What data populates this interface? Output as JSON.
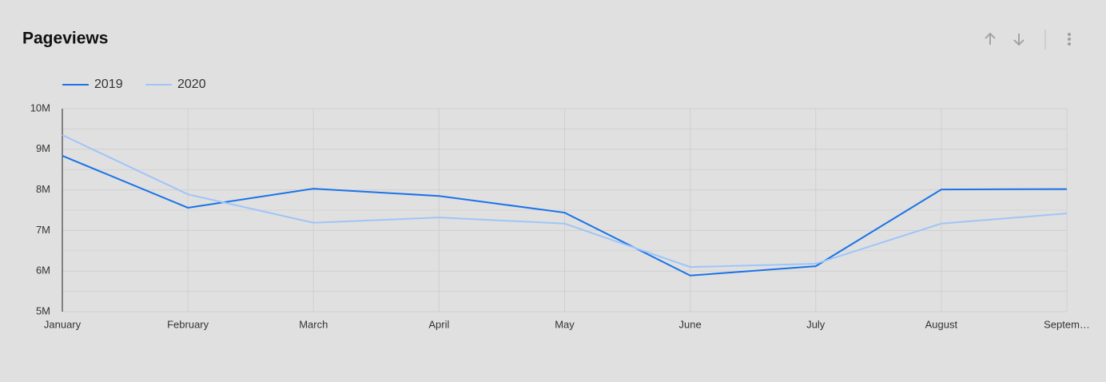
{
  "chart_data": {
    "type": "line",
    "title": "Pageviews",
    "categories": [
      "January",
      "February",
      "March",
      "April",
      "May",
      "June",
      "July",
      "August",
      "Septem…"
    ],
    "series": [
      {
        "name": "2019",
        "color": "#1a73e8",
        "values": [
          8840000,
          7560000,
          8030000,
          7850000,
          7440000,
          5890000,
          6120000,
          8010000,
          8020000
        ]
      },
      {
        "name": "2020",
        "color": "#9fc5f8",
        "values": [
          9350000,
          7890000,
          7190000,
          7320000,
          7170000,
          6100000,
          6180000,
          7170000,
          7420000
        ]
      }
    ],
    "ylim": [
      5000000,
      10000000
    ],
    "yticks": [
      {
        "value": 5000000,
        "label": "5M"
      },
      {
        "value": 6000000,
        "label": "6M"
      },
      {
        "value": 7000000,
        "label": "7M"
      },
      {
        "value": 8000000,
        "label": "8M"
      },
      {
        "value": 9000000,
        "label": "9M"
      },
      {
        "value": 10000000,
        "label": "10M"
      }
    ],
    "minor_yticks": [
      5500000,
      6500000,
      7500000,
      8500000,
      9500000
    ],
    "grid": true,
    "legend": "top-left"
  }
}
